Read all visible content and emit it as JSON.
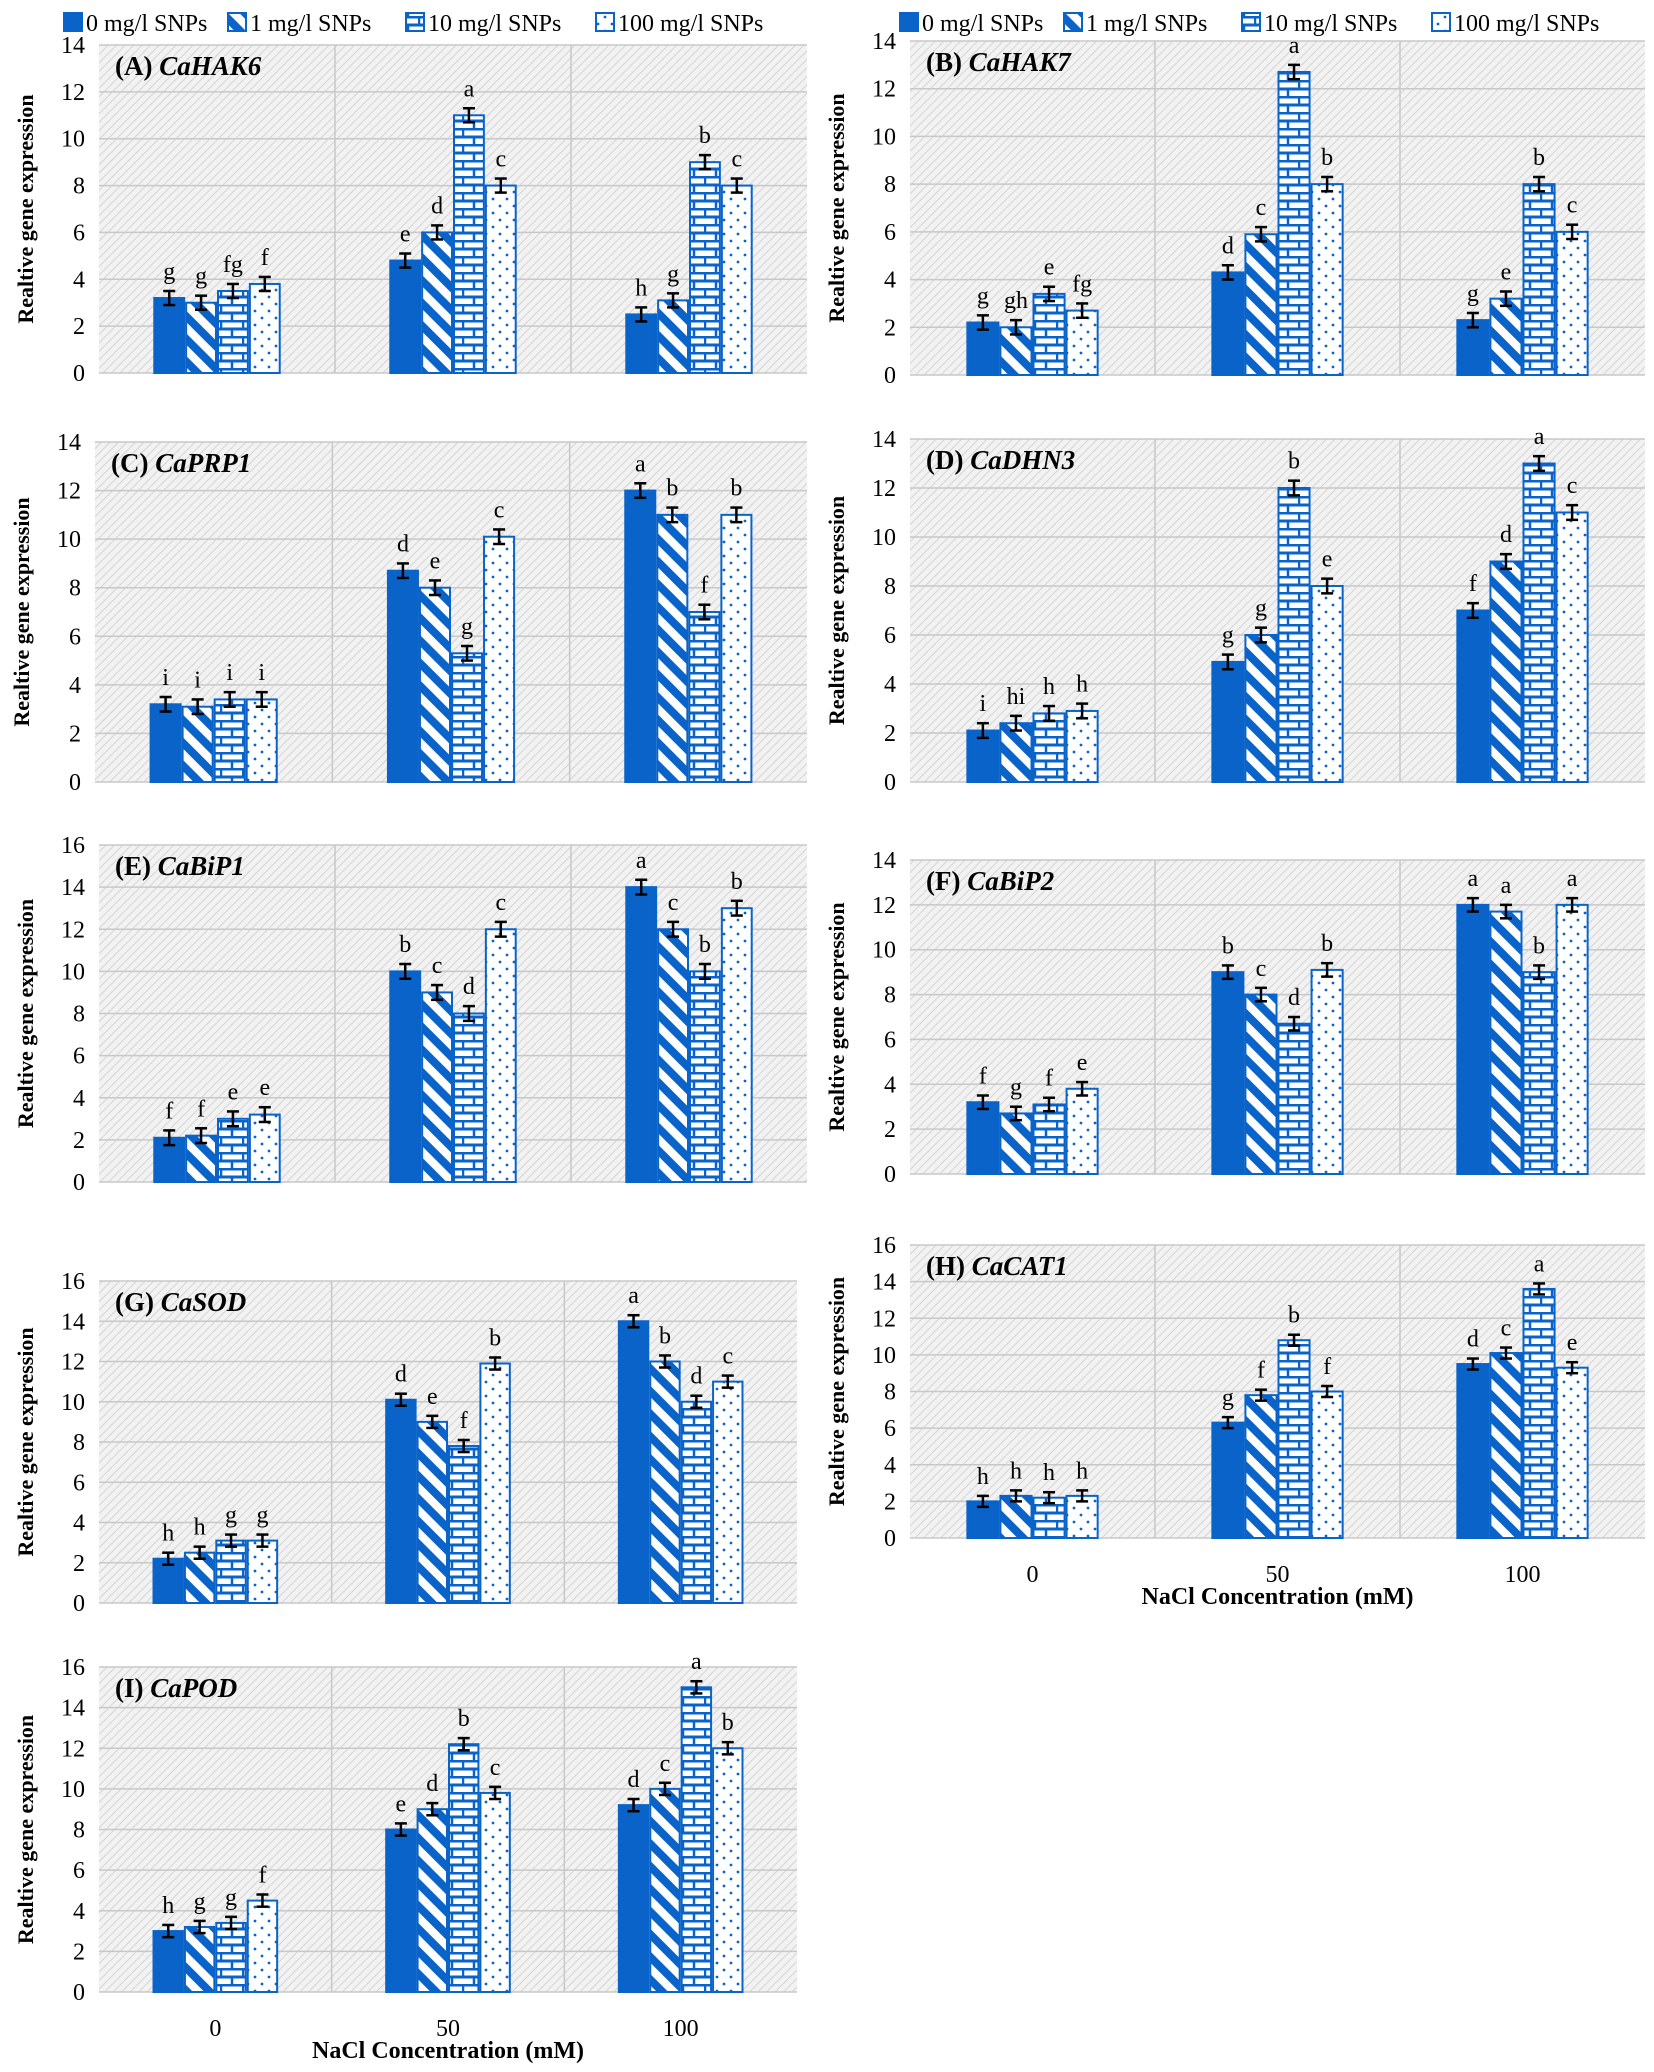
{
  "colors": {
    "bar": "#0a63c9",
    "plot_bg": "#f2f2f2",
    "hatch": "#d6d6d6",
    "grid": "#c8c8c8"
  },
  "legend": {
    "items": [
      "0 mg/l SNPs",
      "1 mg/l SNPs",
      "10 mg/l SNPs",
      "100 mg/l SNPs"
    ]
  },
  "chart_data": [
    {
      "type": "bar",
      "label": "(A)",
      "gene": "CaHAK6",
      "ylabel": "Realtive gene expression",
      "xlabel": "",
      "ylim": [
        0,
        14
      ],
      "ystep": 2,
      "categories": [
        "0",
        "50",
        "100"
      ],
      "show_xticks": false,
      "legend": true,
      "series": [
        {
          "name": "0 mg/l SNPs",
          "values": [
            3.2,
            4.8,
            2.5
          ],
          "letters": [
            "g",
            "e",
            "h"
          ]
        },
        {
          "name": "1 mg/l SNPs",
          "values": [
            3.0,
            6.0,
            3.1
          ],
          "letters": [
            "g",
            "d",
            "g"
          ]
        },
        {
          "name": "10 mg/l SNPs",
          "values": [
            3.5,
            11.0,
            9.0
          ],
          "letters": [
            "fg",
            "a",
            "b"
          ]
        },
        {
          "name": "100 mg/l SNPs",
          "values": [
            3.8,
            8.0,
            8.0
          ],
          "letters": [
            "f",
            "c",
            "c"
          ]
        }
      ],
      "error": 0.3
    },
    {
      "type": "bar",
      "label": "(B)",
      "gene": "CaHAK7",
      "ylabel": "Realtive gene expression",
      "xlabel": "",
      "ylim": [
        0,
        14
      ],
      "ystep": 2,
      "categories": [
        "0",
        "50",
        "100"
      ],
      "show_xticks": false,
      "legend": true,
      "series": [
        {
          "name": "0 mg/l SNPs",
          "values": [
            2.2,
            4.3,
            2.3
          ],
          "letters": [
            "g",
            "d",
            "g"
          ]
        },
        {
          "name": "1 mg/l SNPs",
          "values": [
            2.0,
            5.9,
            3.2
          ],
          "letters": [
            "gh",
            "c",
            "e"
          ]
        },
        {
          "name": "10 mg/l SNPs",
          "values": [
            3.4,
            12.7,
            8.0
          ],
          "letters": [
            "e",
            "a",
            "b"
          ]
        },
        {
          "name": "100 mg/l SNPs",
          "values": [
            2.7,
            8.0,
            6.0
          ],
          "letters": [
            "fg",
            "b",
            "c"
          ]
        }
      ],
      "error": 0.3
    },
    {
      "type": "bar",
      "label": "(C)",
      "gene": "CaPRP1",
      "ylabel": "Realtive gene expression",
      "xlabel": "",
      "ylim": [
        0,
        14
      ],
      "ystep": 2,
      "categories": [
        "0",
        "50",
        "100"
      ],
      "show_xticks": false,
      "legend": false,
      "series": [
        {
          "name": "0 mg/l SNPs",
          "values": [
            3.2,
            8.7,
            12.0
          ],
          "letters": [
            "i",
            "d",
            "a"
          ]
        },
        {
          "name": "1 mg/l SNPs",
          "values": [
            3.1,
            8.0,
            11.0
          ],
          "letters": [
            "i",
            "e",
            "b"
          ]
        },
        {
          "name": "10 mg/l SNPs",
          "values": [
            3.4,
            5.3,
            7.0
          ],
          "letters": [
            "i",
            "g",
            "f"
          ]
        },
        {
          "name": "100 mg/l SNPs",
          "values": [
            3.4,
            10.1,
            11.0
          ],
          "letters": [
            "i",
            "c",
            "b"
          ]
        }
      ],
      "error": 0.3
    },
    {
      "type": "bar",
      "label": "(D)",
      "gene": "CaDHN3",
      "ylabel": "Realtive gene expression",
      "xlabel": "",
      "ylim": [
        0,
        14
      ],
      "ystep": 2,
      "categories": [
        "0",
        "50",
        "100"
      ],
      "show_xticks": false,
      "legend": false,
      "series": [
        {
          "name": "0 mg/l SNPs",
          "values": [
            2.1,
            4.9,
            7.0
          ],
          "letters": [
            "i",
            "g",
            "f"
          ]
        },
        {
          "name": "1 mg/l SNPs",
          "values": [
            2.4,
            6.0,
            9.0
          ],
          "letters": [
            "hi",
            "g",
            "d"
          ]
        },
        {
          "name": "10 mg/l SNPs",
          "values": [
            2.8,
            12.0,
            13.0
          ],
          "letters": [
            "h",
            "b",
            "a"
          ]
        },
        {
          "name": "100 mg/l SNPs",
          "values": [
            2.9,
            8.0,
            11.0
          ],
          "letters": [
            "h",
            "e",
            "c"
          ]
        }
      ],
      "error": 0.3
    },
    {
      "type": "bar",
      "label": "(E)",
      "gene": "CaBiP1",
      "ylabel": "Realtive gene expression",
      "xlabel": "",
      "ylim": [
        0,
        16
      ],
      "ystep": 2,
      "categories": [
        "0",
        "50",
        "100"
      ],
      "show_xticks": false,
      "legend": false,
      "series": [
        {
          "name": "0 mg/l SNPs",
          "values": [
            2.1,
            10.0,
            14.0
          ],
          "letters": [
            "f",
            "b",
            "a"
          ]
        },
        {
          "name": "1 mg/l SNPs",
          "values": [
            2.2,
            9.0,
            12.0
          ],
          "letters": [
            "f",
            "c",
            "c"
          ]
        },
        {
          "name": "10 mg/l SNPs",
          "values": [
            3.0,
            8.0,
            10.0
          ],
          "letters": [
            "e",
            "d",
            "b"
          ]
        },
        {
          "name": "100 mg/l SNPs",
          "values": [
            3.2,
            12.0,
            13.0
          ],
          "letters": [
            "e",
            "c",
            "b"
          ]
        }
      ],
      "error": 0.35
    },
    {
      "type": "bar",
      "label": "(F)",
      "gene": "CaBiP2",
      "ylabel": "Realtive gene expression",
      "xlabel": "",
      "ylim": [
        0,
        14
      ],
      "ystep": 2,
      "categories": [
        "0",
        "50",
        "100"
      ],
      "show_xticks": false,
      "legend": false,
      "series": [
        {
          "name": "0 mg/l SNPs",
          "values": [
            3.2,
            9.0,
            12.0
          ],
          "letters": [
            "f",
            "b",
            "a"
          ]
        },
        {
          "name": "1 mg/l SNPs",
          "values": [
            2.7,
            8.0,
            11.7
          ],
          "letters": [
            "g",
            "c",
            "a"
          ]
        },
        {
          "name": "10 mg/l SNPs",
          "values": [
            3.1,
            6.7,
            9.0
          ],
          "letters": [
            "f",
            "d",
            "b"
          ]
        },
        {
          "name": "100 mg/l SNPs",
          "values": [
            3.8,
            9.1,
            12.0
          ],
          "letters": [
            "e",
            "b",
            "a"
          ]
        }
      ],
      "error": 0.3
    },
    {
      "type": "bar",
      "label": "(G)",
      "gene": "CaSOD",
      "ylabel": "Realtive gene expression",
      "xlabel": "",
      "ylim": [
        0,
        16
      ],
      "ystep": 2,
      "categories": [
        "0",
        "50",
        "100"
      ],
      "show_xticks": false,
      "legend": false,
      "series": [
        {
          "name": "0 mg/l SNPs",
          "values": [
            2.2,
            10.1,
            14.0
          ],
          "letters": [
            "h",
            "d",
            "a"
          ]
        },
        {
          "name": "1 mg/l SNPs",
          "values": [
            2.5,
            9.0,
            12.0
          ],
          "letters": [
            "h",
            "e",
            "b"
          ]
        },
        {
          "name": "10 mg/l SNPs",
          "values": [
            3.1,
            7.8,
            10.0
          ],
          "letters": [
            "g",
            "f",
            "d"
          ]
        },
        {
          "name": "100 mg/l SNPs",
          "values": [
            3.1,
            11.9,
            11.0
          ],
          "letters": [
            "g",
            "b",
            "c"
          ]
        }
      ],
      "error": 0.3
    },
    {
      "type": "bar",
      "label": "(H)",
      "gene": "CaCAT1",
      "ylabel": "Realtive gene expression",
      "xlabel": "NaCl Concentration (mM)",
      "ylim": [
        0,
        16
      ],
      "ystep": 2,
      "categories": [
        "0",
        "50",
        "100"
      ],
      "show_xticks": true,
      "legend": false,
      "series": [
        {
          "name": "0 mg/l SNPs",
          "values": [
            2.0,
            6.3,
            9.5
          ],
          "letters": [
            "h",
            "g",
            "d"
          ]
        },
        {
          "name": "1 mg/l SNPs",
          "values": [
            2.3,
            7.8,
            10.1
          ],
          "letters": [
            "h",
            "f",
            "c"
          ]
        },
        {
          "name": "10 mg/l SNPs",
          "values": [
            2.2,
            10.8,
            13.6
          ],
          "letters": [
            "h",
            "b",
            "a"
          ]
        },
        {
          "name": "100 mg/l SNPs",
          "values": [
            2.3,
            8.0,
            9.3
          ],
          "letters": [
            "h",
            "f",
            "e"
          ]
        }
      ],
      "error": 0.3
    },
    {
      "type": "bar",
      "label": "(I)",
      "gene": "CaPOD",
      "ylabel": "Realtive  gene expression",
      "xlabel": "NaCl Concentration (mM)",
      "ylim": [
        0,
        16
      ],
      "ystep": 2,
      "categories": [
        "0",
        "50",
        "100"
      ],
      "show_xticks": true,
      "legend": false,
      "series": [
        {
          "name": "0 mg/l SNPs",
          "values": [
            3.0,
            8.0,
            9.2
          ],
          "letters": [
            "h",
            "e",
            "d"
          ]
        },
        {
          "name": "1 mg/l SNPs",
          "values": [
            3.2,
            9.0,
            10.0
          ],
          "letters": [
            "g",
            "d",
            "c"
          ]
        },
        {
          "name": "10 mg/l SNPs",
          "values": [
            3.4,
            12.2,
            15.0
          ],
          "letters": [
            "g",
            "b",
            "a"
          ]
        },
        {
          "name": "100 mg/l SNPs",
          "values": [
            4.5,
            9.8,
            12.0
          ],
          "letters": [
            "f",
            "c",
            "b"
          ]
        }
      ],
      "error": 0.3
    }
  ]
}
